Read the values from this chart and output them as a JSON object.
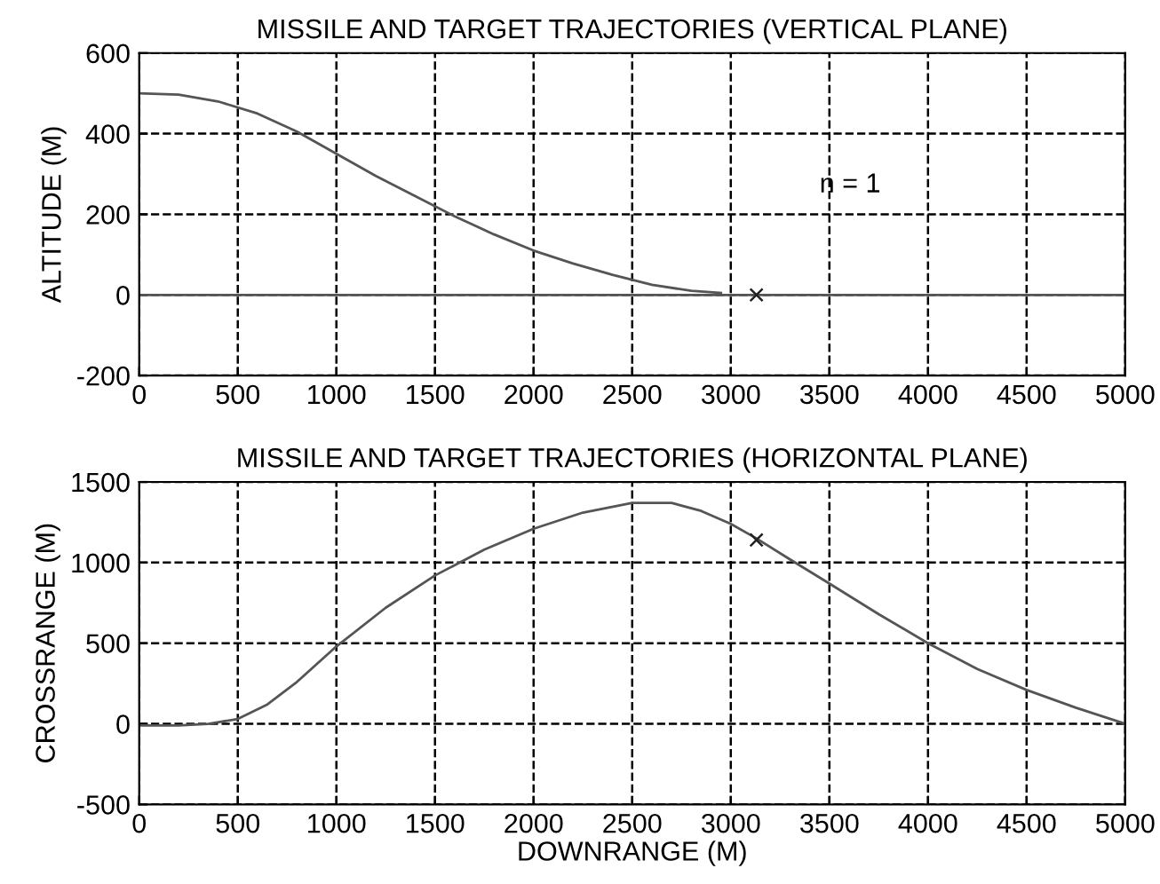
{
  "chart_data": [
    {
      "type": "line",
      "title": "MISSILE AND TARGET TRAJECTORIES (VERTICAL PLANE)",
      "ylabel": "ALTITUDE (M)",
      "series": [
        {
          "color": "#555555",
          "x": [
            0,
            200,
            400,
            600,
            800,
            1000,
            1200,
            1400,
            1600,
            1800,
            2000,
            2200,
            2400,
            2600,
            2800,
            2950
          ],
          "values": [
            500,
            497,
            480,
            450,
            405,
            350,
            295,
            245,
            195,
            150,
            110,
            78,
            50,
            25,
            10,
            5
          ]
        },
        {
          "color": "#555555",
          "x": [
            0,
            5000
          ],
          "values": [
            0,
            0
          ]
        },
        {
          "type": "scatter",
          "marker": "cross",
          "color": "#222222",
          "x": [
            3130
          ],
          "values": [
            0
          ]
        }
      ],
      "annotations": [
        "n = 1"
      ],
      "xlim": [
        0,
        5000
      ],
      "xticks": [
        0,
        500,
        1000,
        1500,
        2000,
        2500,
        3000,
        3500,
        4000,
        4500,
        5000
      ],
      "ylim": [
        -200,
        600
      ],
      "yticks": [
        -200,
        0,
        200,
        400,
        600
      ],
      "grid": true
    },
    {
      "type": "line",
      "title": "MISSILE AND TARGET TRAJECTORIES (HORIZONTAL PLANE)",
      "xlabel": "DOWNRANGE (M)",
      "ylabel": "CROSSRANGE (M)",
      "series": [
        {
          "color": "#555555",
          "x": [
            0,
            200,
            350,
            500,
            650,
            800,
            1000,
            1250,
            1500,
            1750,
            2000,
            2250,
            2500,
            2700,
            2850,
            3000,
            3130,
            3300,
            3500,
            3750,
            4000,
            4250,
            4500,
            4750,
            5000
          ],
          "values": [
            -10,
            -10,
            0,
            30,
            120,
            260,
            480,
            720,
            920,
            1080,
            1210,
            1310,
            1370,
            1370,
            1320,
            1240,
            1150,
            1020,
            870,
            680,
            500,
            340,
            210,
            100,
            0
          ]
        },
        {
          "type": "scatter",
          "marker": "cross",
          "color": "#222222",
          "x": [
            3130
          ],
          "values": [
            1140
          ]
        }
      ],
      "xlim": [
        0,
        5000
      ],
      "xticks": [
        0,
        500,
        1000,
        1500,
        2000,
        2500,
        3000,
        3500,
        4000,
        4500,
        5000
      ],
      "ylim": [
        -500,
        1500
      ],
      "yticks": [
        -500,
        0,
        500,
        1000,
        1500
      ],
      "grid": true
    }
  ]
}
